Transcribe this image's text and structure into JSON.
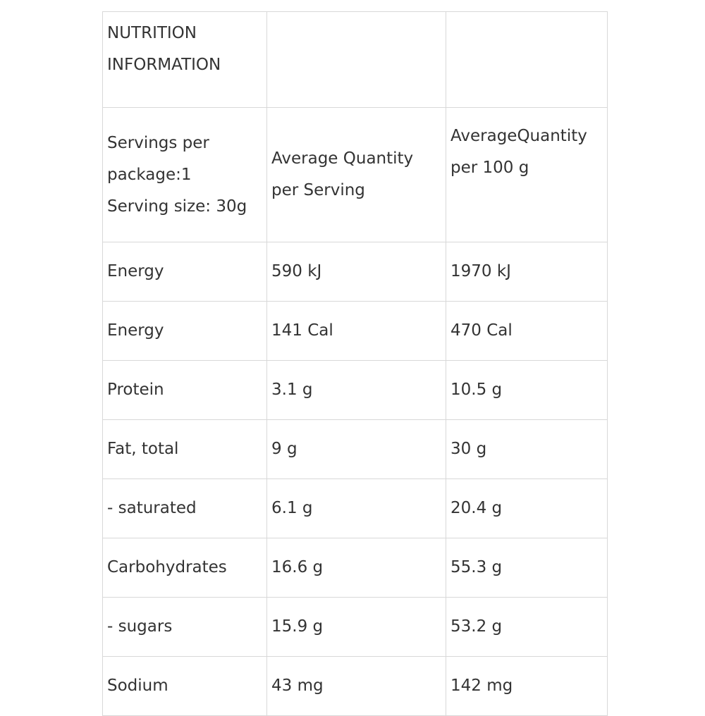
{
  "table": {
    "title": "NUTRITION\nINFORMATION",
    "header": {
      "serving_info": "Servings per\npackage:1\nServing size: 30g",
      "col_per_serving": "Average Quantity\nper Serving",
      "col_per_100g": "AverageQuantity\nper 100 g"
    },
    "rows": [
      {
        "nutrient": "Energy",
        "per_serving": "590 kJ",
        "per_100g": "1970 kJ"
      },
      {
        "nutrient": "Energy",
        "per_serving": "141 Cal",
        "per_100g": "470 Cal"
      },
      {
        "nutrient": "Protein",
        "per_serving": "3.1 g",
        "per_100g": "10.5 g"
      },
      {
        "nutrient": "Fat, total",
        "per_serving": "9 g",
        "per_100g": "30 g"
      },
      {
        "nutrient": "- saturated",
        "per_serving": "6.1 g",
        "per_100g": "20.4 g"
      },
      {
        "nutrient": "Carbohydrates",
        "per_serving": "16.6 g",
        "per_100g": "55.3 g"
      },
      {
        "nutrient": "- sugars",
        "per_serving": "15.9 g",
        "per_100g": "53.2 g"
      },
      {
        "nutrient": "Sodium",
        "per_serving": "43 mg",
        "per_100g": "142 mg"
      }
    ]
  }
}
